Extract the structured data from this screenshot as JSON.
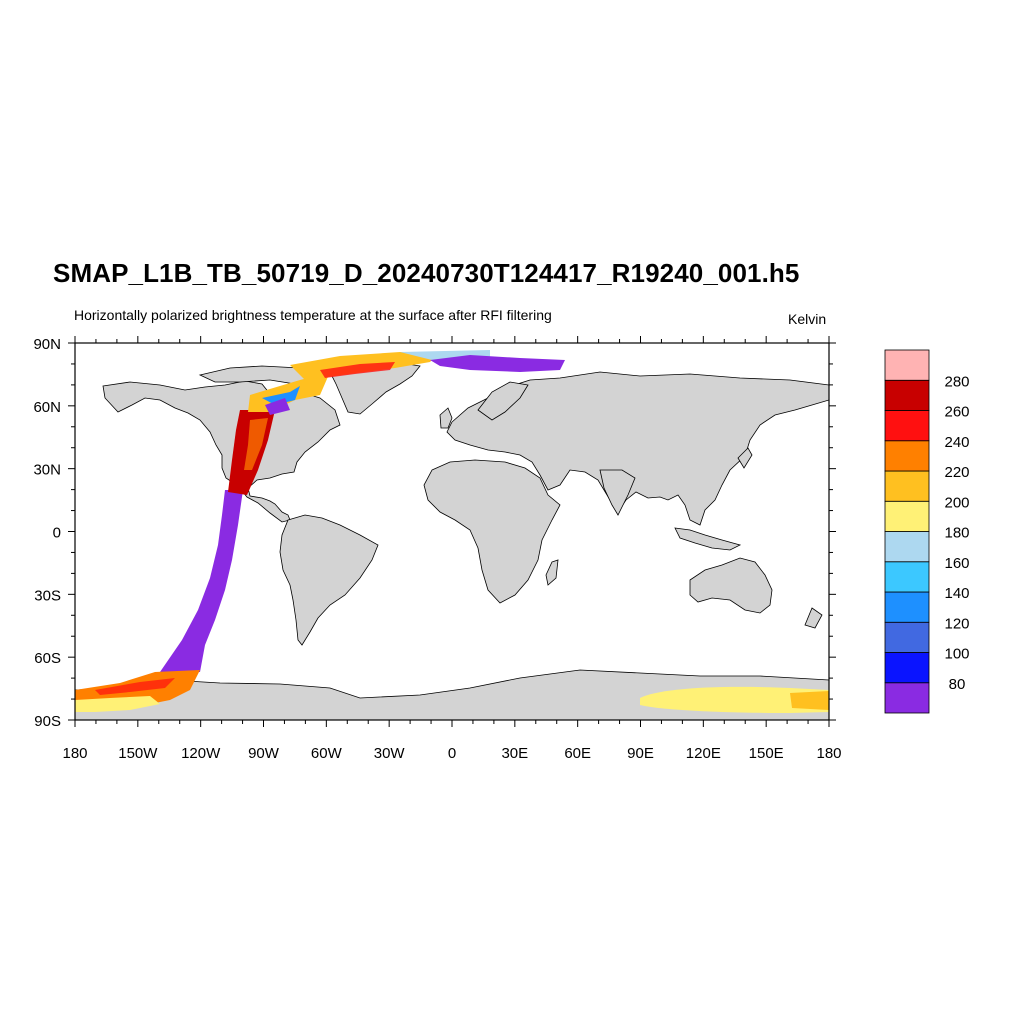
{
  "title": "SMAP_L1B_TB_50719_D_20240730T124417_R19240_001.h5",
  "subtitle": "Horizontally polarized brightness temperature at the surface after RFI filtering",
  "units": "Kelvin",
  "chart_data": {
    "type": "heatmap",
    "projection": "equirectangular",
    "x_range": [
      -180,
      180
    ],
    "y_range": [
      -90,
      90
    ],
    "lon_ticks": [
      {
        "value": -180,
        "label": "180"
      },
      {
        "value": -150,
        "label": "150W"
      },
      {
        "value": -120,
        "label": "120W"
      },
      {
        "value": -90,
        "label": "90W"
      },
      {
        "value": -60,
        "label": "60W"
      },
      {
        "value": -30,
        "label": "30W"
      },
      {
        "value": 0,
        "label": "0"
      },
      {
        "value": 30,
        "label": "30E"
      },
      {
        "value": 60,
        "label": "60E"
      },
      {
        "value": 90,
        "label": "90E"
      },
      {
        "value": 120,
        "label": "120E"
      },
      {
        "value": 150,
        "label": "150E"
      },
      {
        "value": 180,
        "label": "180"
      }
    ],
    "lat_ticks": [
      {
        "value": 90,
        "label": "90N"
      },
      {
        "value": 60,
        "label": "60N"
      },
      {
        "value": 30,
        "label": "30N"
      },
      {
        "value": 0,
        "label": "0"
      },
      {
        "value": -30,
        "label": "30S"
      },
      {
        "value": -60,
        "label": "60S"
      },
      {
        "value": -90,
        "label": "90S"
      }
    ],
    "colorbar": {
      "colors": [
        "#8a2be2",
        "#0a14ff",
        "#4169e1",
        "#1e90ff",
        "#3cc8ff",
        "#add8f0",
        "#fff176",
        "#ffc020",
        "#ff8000",
        "#ff1010",
        "#c80000",
        "#ffb3b3"
      ],
      "labels": [
        "80",
        "100",
        "120",
        "140",
        "160",
        "180",
        "200",
        "220",
        "240",
        "260",
        "280"
      ]
    },
    "land_color": "#d3d3d3",
    "ocean_color": "#ffffff"
  }
}
